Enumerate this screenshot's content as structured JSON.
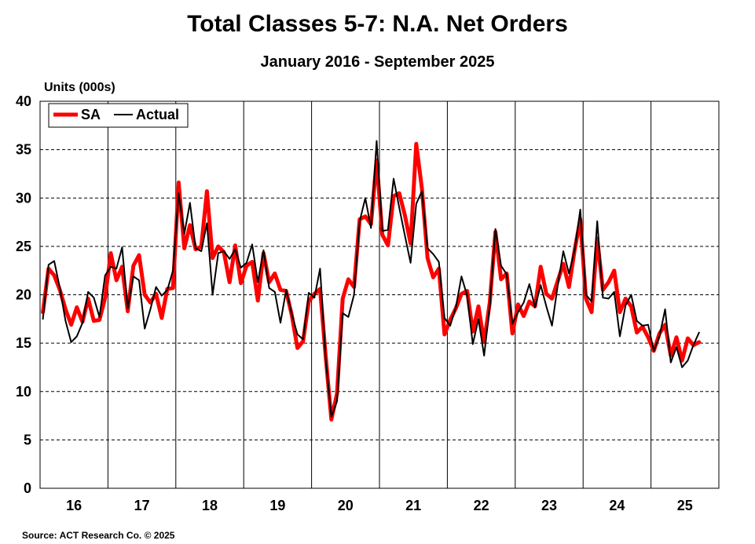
{
  "chart_data": {
    "type": "line",
    "title": "Total Classes 5-7: N.A. Net Orders",
    "subtitle": "January 2016 - September 2025",
    "ylabel": "Units (000s)",
    "xlabel": "",
    "ylim": [
      0,
      40
    ],
    "y_ticks": [
      "0",
      "5",
      "10",
      "15",
      "20",
      "25",
      "30",
      "35",
      "40"
    ],
    "x_tick_labels": [
      "16",
      "17",
      "18",
      "19",
      "20",
      "21",
      "22",
      "23",
      "24",
      "25"
    ],
    "grid": "horizontal dashed",
    "legend": "top-left",
    "x_start": "2016-01",
    "series": [
      {
        "name": "SA",
        "color": "#ff0000",
        "values": [
          18.2,
          22.7,
          22.0,
          20.5,
          18.5,
          16.9,
          18.7,
          17.2,
          19.6,
          17.3,
          17.4,
          19.7,
          24.3,
          21.5,
          22.9,
          18.3,
          23.0,
          24.1,
          20.0,
          19.2,
          20.1,
          17.6,
          20.6,
          20.7,
          31.6,
          24.8,
          27.2,
          24.7,
          25.0,
          30.7,
          23.8,
          25.0,
          24.4,
          21.3,
          25.1,
          21.2,
          23.0,
          23.4,
          19.4,
          24.3,
          21.3,
          22.2,
          20.5,
          20.4,
          17.9,
          14.5,
          15.2,
          19.3,
          20.1,
          20.6,
          13.6,
          7.1,
          9.8,
          19.6,
          21.6,
          20.8,
          27.8,
          28.1,
          27.3,
          33.9,
          26.2,
          25.1,
          30.2,
          30.5,
          28.2,
          25.3,
          35.6,
          31.0,
          23.8,
          21.8,
          22.7,
          15.9,
          17.4,
          18.6,
          20.1,
          20.4,
          16.2,
          18.8,
          15.1,
          19.2,
          26.5,
          21.6,
          22.2,
          16.0,
          19.0,
          17.8,
          19.3,
          18.8,
          22.9,
          20.1,
          19.6,
          21.4,
          23.2,
          20.8,
          24.6,
          27.8,
          19.6,
          18.2,
          25.8,
          20.5,
          21.3,
          22.5,
          18.2,
          19.6,
          18.8,
          16.1,
          16.7,
          15.6,
          14.2,
          16.0,
          16.9,
          13.7,
          15.6,
          13.2,
          15.5,
          14.8,
          15.1
        ]
      },
      {
        "name": "Actual",
        "color": "#000000",
        "values": [
          17.5,
          23.1,
          23.5,
          20.7,
          17.3,
          15.1,
          15.7,
          17.1,
          20.3,
          19.7,
          17.7,
          22.0,
          22.9,
          22.7,
          24.9,
          18.6,
          21.9,
          21.5,
          16.5,
          18.5,
          20.8,
          19.9,
          20.5,
          22.5,
          30.5,
          26.3,
          29.5,
          24.8,
          24.5,
          27.4,
          20.0,
          24.3,
          24.5,
          23.7,
          24.7,
          22.8,
          23.3,
          25.2,
          21.3,
          24.6,
          20.7,
          20.3,
          17.1,
          20.5,
          18.0,
          15.9,
          15.4,
          20.2,
          19.7,
          22.7,
          13.3,
          7.4,
          9.0,
          18.1,
          17.7,
          20.0,
          27.6,
          30.0,
          26.9,
          35.9,
          26.6,
          26.7,
          32.0,
          29.0,
          26.1,
          23.3,
          29.4,
          30.7,
          24.8,
          24.2,
          23.4,
          17.6,
          16.8,
          18.7,
          21.9,
          19.9,
          14.9,
          17.5,
          13.7,
          18.8,
          26.8,
          23.0,
          22.1,
          17.0,
          18.2,
          19.2,
          21.1,
          18.7,
          21.0,
          18.8,
          16.8,
          20.9,
          24.5,
          22.2,
          24.6,
          28.8,
          20.0,
          19.3,
          27.6,
          19.7,
          19.6,
          20.3,
          15.7,
          18.9,
          20.0,
          17.3,
          16.8,
          16.9,
          14.2,
          15.7,
          18.5,
          13.0,
          14.6,
          12.5,
          13.2,
          14.8,
          16.1
        ]
      }
    ],
    "source": "Source: ACT Research Co. © 2025"
  }
}
